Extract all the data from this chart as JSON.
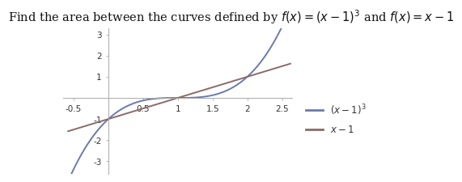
{
  "title": "Find the area between the curves defined by $f(x) = (x-1)^3$ and $f(x) = x - 1$",
  "xlim": [
    -0.65,
    2.65
  ],
  "ylim": [
    -3.6,
    3.3
  ],
  "xticks": [
    -0.5,
    0.5,
    1.0,
    1.5,
    2.0,
    2.5
  ],
  "yticks": [
    -3,
    -2,
    -1,
    1,
    2,
    3
  ],
  "x_start": -0.58,
  "x_end": 2.62,
  "color_cubic": "#6b7aab",
  "color_linear": "#8b6a6a",
  "fill_color": "#d0d4e8",
  "fill_alpha": 0.0,
  "legend_cubic": "$(x-1)^3$",
  "legend_linear": "$x-1$",
  "linewidth": 1.4,
  "title_fontsize": 10.5,
  "tick_fontsize": 7.5,
  "legend_fontsize": 8.5,
  "background_color": "#ffffff",
  "ax_background": "#ffffff"
}
